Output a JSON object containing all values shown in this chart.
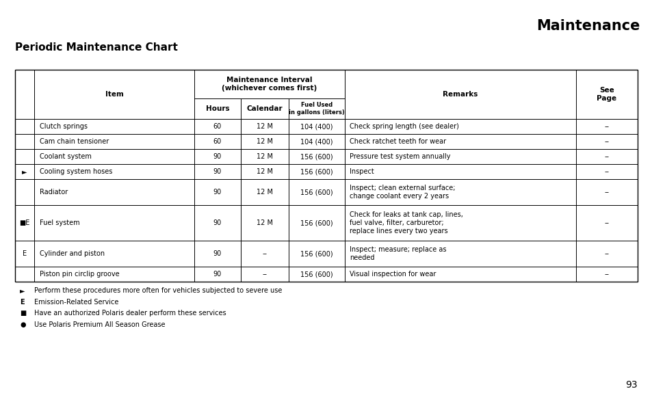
{
  "title": "Maintenance",
  "subtitle": "Periodic Maintenance Chart",
  "page_number": "93",
  "background_color": "#ffffff",
  "table": {
    "rows": [
      {
        "prefix": "",
        "item": "Clutch springs",
        "hours": "60",
        "calendar": "12 M",
        "fuel": "104 (400)",
        "remarks": "Check spring length (see dealer)",
        "see_page": "--"
      },
      {
        "prefix": "",
        "item": "Cam chain tensioner",
        "hours": "60",
        "calendar": "12 M",
        "fuel": "104 (400)",
        "remarks": "Check ratchet teeth for wear",
        "see_page": "--"
      },
      {
        "prefix": "",
        "item": "Coolant system",
        "hours": "90",
        "calendar": "12 M",
        "fuel": "156 (600)",
        "remarks": "Pressure test system annually",
        "see_page": "--"
      },
      {
        "prefix": "►",
        "item": "Cooling system hoses",
        "hours": "90",
        "calendar": "12 M",
        "fuel": "156 (600)",
        "remarks": "Inspect",
        "see_page": "--"
      },
      {
        "prefix": "",
        "item": "Radiator",
        "hours": "90",
        "calendar": "12 M",
        "fuel": "156 (600)",
        "remarks": "Inspect; clean external surface;\nchange coolant every 2 years",
        "see_page": "--"
      },
      {
        "prefix": "■E",
        "item": "Fuel system",
        "hours": "90",
        "calendar": "12 M",
        "fuel": "156 (600)",
        "remarks": "Check for leaks at tank cap, lines,\nfuel valve, filter, carburetor;\nreplace lines every two years",
        "see_page": "--"
      },
      {
        "prefix": "E",
        "item": "Cylinder and piston",
        "hours": "90",
        "calendar": "--",
        "fuel": "156 (600)",
        "remarks": "Inspect; measure; replace as\nneeded",
        "see_page": "--"
      },
      {
        "prefix": "",
        "item": "Piston pin circlip groove",
        "hours": "90",
        "calendar": "--",
        "fuel": "156 (600)",
        "remarks": "Visual inspection for wear",
        "see_page": "--"
      }
    ],
    "footnotes": [
      [
        "►",
        "Perform these procedures more often for vehicles subjected to severe use"
      ],
      [
        "E",
        "Emission-Related Service"
      ],
      [
        "■",
        "Have an authorized Polaris dealer perform these services"
      ],
      [
        "●",
        "Use Polaris Premium All Season Grease"
      ]
    ]
  }
}
